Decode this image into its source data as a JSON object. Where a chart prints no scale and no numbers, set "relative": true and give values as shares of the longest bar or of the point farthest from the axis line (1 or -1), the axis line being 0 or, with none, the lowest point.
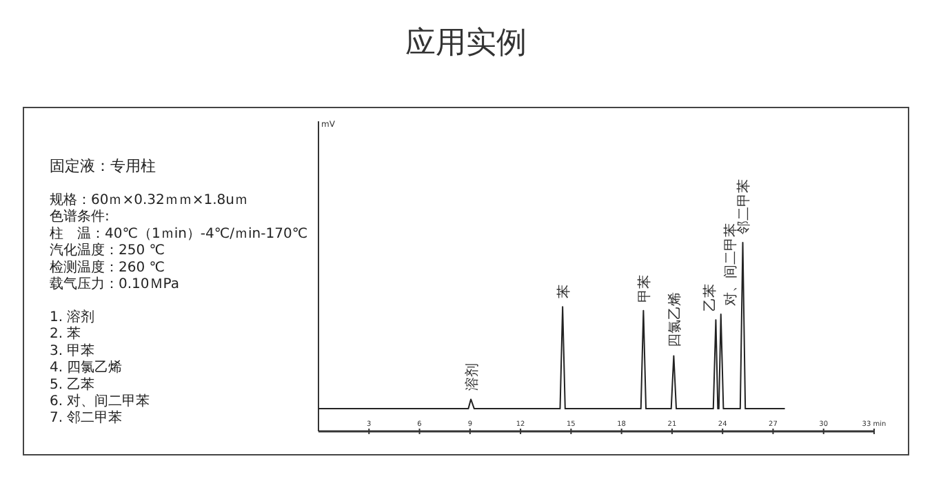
{
  "chart_data": {
    "type": "line",
    "title": "应用实例",
    "relative": true,
    "x": [
      0,
      8.9,
      9.05,
      9.25,
      14.35,
      14.5,
      14.65,
      19.15,
      19.3,
      19.45,
      20.95,
      21.1,
      21.25,
      23.45,
      23.6,
      23.72,
      23.78,
      23.9,
      24.05,
      25.05,
      25.2,
      25.35,
      27.7
    ],
    "values": [
      0.12,
      0.12,
      0.17,
      0.12,
      0.12,
      0.66,
      0.12,
      0.12,
      0.64,
      0.12,
      0.12,
      0.4,
      0.12,
      0.12,
      0.59,
      0.12,
      0.12,
      0.62,
      0.12,
      0.12,
      1,
      0.12,
      0.12
    ],
    "color": "#222222",
    "xlim": [
      0,
      33
    ],
    "xticks": [
      3,
      6,
      9,
      12,
      15,
      18,
      21,
      24,
      27,
      30,
      {
        "value": 33,
        "label": "33 min"
      }
    ],
    "annotations": [
      "固定液：专用柱",
      "规格：60ｍ×0.32ｍｍ×1.8uｍ",
      "色谱条件:",
      "柱　温：40℃（1ｍin）-4℃/ｍin-170℃",
      "汽化温度：250 ℃",
      "检测温度：260 ℃",
      "载气压力：0.10ＭPa",
      "1. 溶剂",
      "2. 苯",
      "3. 甲苯",
      "4. 四氯乙烯",
      "5. 乙苯",
      "6. 对、间二甲苯",
      "7. 邻二甲苯",
      {
        "text": "mV"
      },
      {
        "text": "溶剂",
        "x": 9.05,
        "y": 0.17
      },
      {
        "text": "苯",
        "x": 14.5,
        "y": 0.66
      },
      {
        "text": "甲苯",
        "x": 19.3,
        "y": 0.64
      },
      {
        "text": "四氯乙烯",
        "x": 21.1,
        "y": 0.4
      },
      {
        "text": "乙苯",
        "x": 23.6,
        "y": 0.59
      },
      {
        "text": "对、间二甲苯",
        "x": 23.9,
        "y": 0.62
      },
      {
        "text": "邻二甲苯",
        "x": 25.2,
        "y": 1
      }
    ]
  }
}
